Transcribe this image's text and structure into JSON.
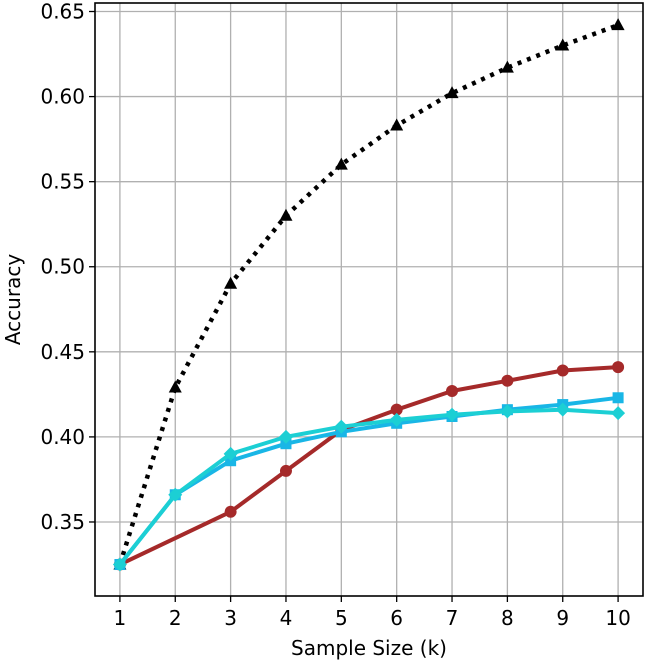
{
  "chart_data": {
    "type": "line",
    "title": "",
    "xlabel": "Sample Size (k)",
    "ylabel": "Accuracy",
    "x": [
      1,
      2,
      3,
      4,
      5,
      6,
      7,
      8,
      9,
      10
    ],
    "xlim": [
      0.55,
      10.45
    ],
    "ylim": [
      0.3065,
      0.655
    ],
    "xticks": [
      "1",
      "2",
      "3",
      "4",
      "5",
      "6",
      "7",
      "8",
      "9",
      "10"
    ],
    "yticks": [
      "0.35",
      "0.40",
      "0.45",
      "0.50",
      "0.55",
      "0.60",
      "0.65"
    ],
    "grid": true,
    "series": [
      {
        "color": "#000000",
        "line_style": "dotted",
        "marker": "triangle",
        "values": [
          0.325,
          0.429,
          0.49,
          0.53,
          0.56,
          0.583,
          0.602,
          0.617,
          0.63,
          0.642
        ]
      },
      {
        "color": "#a52a2a",
        "line_style": "solid",
        "marker": "circle",
        "x": [
          1,
          3,
          4,
          5,
          6,
          7,
          8,
          9,
          10
        ],
        "values": [
          0.325,
          0.356,
          0.38,
          0.404,
          0.416,
          0.427,
          0.433,
          0.439,
          0.441
        ]
      },
      {
        "color": "#19b6e6",
        "line_style": "solid",
        "marker": "square",
        "values": [
          0.325,
          0.366,
          0.386,
          0.396,
          0.403,
          0.408,
          0.412,
          0.416,
          0.419,
          0.423
        ]
      },
      {
        "color": "#1ccfd4",
        "line_style": "solid",
        "marker": "diamond",
        "values": [
          0.325,
          0.366,
          0.39,
          0.4,
          0.406,
          0.41,
          0.413,
          0.415,
          0.416,
          0.414
        ]
      }
    ]
  }
}
